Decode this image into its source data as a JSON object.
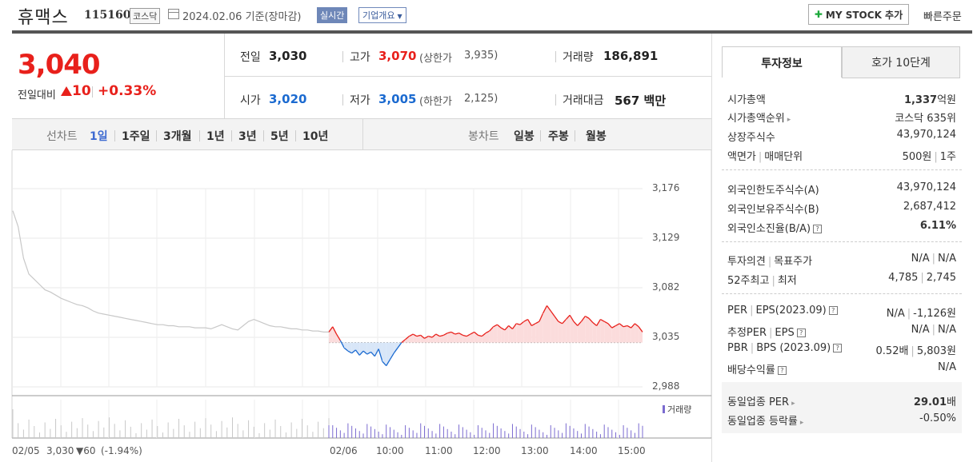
{
  "header": {
    "name": "휴맥스",
    "code": "115160",
    "market": "코스닥",
    "date_text": "2024.02.06 기준(장마감)",
    "realtime": "실시간",
    "overview": "기업개요",
    "mystock": "MY STOCK 추가",
    "fastorder": "빠른주문"
  },
  "price": {
    "current": "3,040",
    "change_label": "전일대비",
    "change": "10",
    "change_pct": "+0.33%"
  },
  "quote": {
    "prev_label": "전일",
    "prev": "3,030",
    "high_label": "고가",
    "high": "3,070",
    "upper_label": "(상한가",
    "upper": "3,935)",
    "volume_label": "거래량",
    "volume": "186,891",
    "open_label": "시가",
    "open": "3,020",
    "low_label": "저가",
    "low": "3,005",
    "lower_label": "(하한가",
    "lower": "2,125)",
    "amount_label": "거래대금",
    "amount": "567 백만"
  },
  "periods": {
    "line_label": "선차트",
    "items": [
      "1일",
      "1주일",
      "3개월",
      "1년",
      "3년",
      "5년",
      "10년"
    ],
    "candle_label": "봉차트",
    "candles": [
      "일봉",
      "주봉",
      "월봉"
    ]
  },
  "chart_data": {
    "type": "line",
    "y_ticks": [
      "3,176",
      "3,129",
      "3,082",
      "3,035",
      "2,988"
    ],
    "ylim": [
      2988,
      3176
    ],
    "x_ticks": [
      "02/06",
      "10:00",
      "11:00",
      "12:00",
      "13:00",
      "14:00",
      "15:00"
    ],
    "volume_label": "거래량",
    "base_price": 3030,
    "prev_day": {
      "label": "02/05",
      "close": "3,030",
      "change": "▼60",
      "pct": "(-1.94%)"
    },
    "colors": {
      "up": "#e8201b",
      "down": "#1b6ad0",
      "prev": "#c8c8c8",
      "upfill": "#fbdcdc",
      "downfill": "#d8e6f8"
    },
    "series": [
      {
        "values": [
          3155,
          3140,
          3110,
          3095,
          3090,
          3085,
          3080,
          3078,
          3075,
          3072,
          3070,
          3068,
          3066,
          3065,
          3063,
          3060,
          3058,
          3057,
          3056,
          3055,
          3054,
          3053,
          3052,
          3051,
          3050,
          3049,
          3048,
          3047,
          3047,
          3046,
          3046,
          3045,
          3045,
          3045,
          3044,
          3044,
          3044,
          3043,
          3045,
          3047,
          3045,
          3043,
          3042,
          3046,
          3050,
          3052,
          3050,
          3048,
          3046,
          3045,
          3045,
          3044,
          3043,
          3043,
          3042,
          3042,
          3041,
          3041,
          3040,
          3040
        ]
      },
      {
        "values": [
          3040,
          3045,
          3038,
          3032,
          3025,
          3022,
          3020,
          3023,
          3018,
          3022,
          3019,
          3021,
          3017,
          3024,
          3012,
          3008,
          3014,
          3020,
          3025,
          3030,
          3033,
          3036,
          3038,
          3036,
          3037,
          3034,
          3036,
          3035,
          3038,
          3036,
          3037,
          3039,
          3040,
          3038,
          3039,
          3037,
          3036,
          3038,
          3040,
          3037,
          3036,
          3039,
          3041,
          3045,
          3047,
          3044,
          3042,
          3046,
          3043,
          3048,
          3047,
          3050,
          3052,
          3046,
          3048,
          3050,
          3058,
          3065,
          3060,
          3055,
          3050,
          3048,
          3052,
          3056,
          3050,
          3046,
          3050,
          3055,
          3053,
          3049,
          3046,
          3052,
          3050,
          3048,
          3044,
          3046,
          3048,
          3045,
          3046,
          3044,
          3048,
          3045,
          3040
        ]
      }
    ]
  },
  "tabs": {
    "invest": "투자정보",
    "hoga": "호가 10단계"
  },
  "info": {
    "g1": [
      {
        "k": "시가총액",
        "v": "1,337",
        "unit": "억원"
      },
      {
        "k": "시가총액순위",
        "v": "코스닥 635위"
      },
      {
        "k": "상장주식수",
        "v": "43,970,124"
      },
      {
        "k": "액면가",
        "k2": "매매단위",
        "v": "500원",
        "v2": "1주"
      }
    ],
    "g2": [
      {
        "k": "외국인한도주식수(A)",
        "v": "43,970,124"
      },
      {
        "k": "외국인보유주식수(B)",
        "v": "2,687,412"
      },
      {
        "k": "외국인소진율(B/A)",
        "v": "6.11%"
      }
    ],
    "g3": [
      {
        "k": "투자의견",
        "k2": "목표주가",
        "v": "N/A",
        "v2": "N/A"
      },
      {
        "k": "52주최고",
        "k2": "최저",
        "v": "4,785",
        "v2": "2,745"
      }
    ],
    "g4": [
      {
        "k": "PER",
        "k2": "EPS(2023.09)",
        "v": "N/A",
        "v2": "-1,126원"
      },
      {
        "k": "추정PER",
        "k2": "EPS",
        "v": "N/A",
        "v2": "N/A"
      },
      {
        "k": "PBR",
        "k2": "BPS (2023.09)",
        "v": "0.52배",
        "v2": "5,803원"
      },
      {
        "k": "배당수익률",
        "v": "N/A"
      }
    ],
    "g5": [
      {
        "k": "동일업종 PER",
        "v": "29.01",
        "unit": "배"
      },
      {
        "k": "동일업종 등락률",
        "v": "-0.50%"
      }
    ]
  }
}
